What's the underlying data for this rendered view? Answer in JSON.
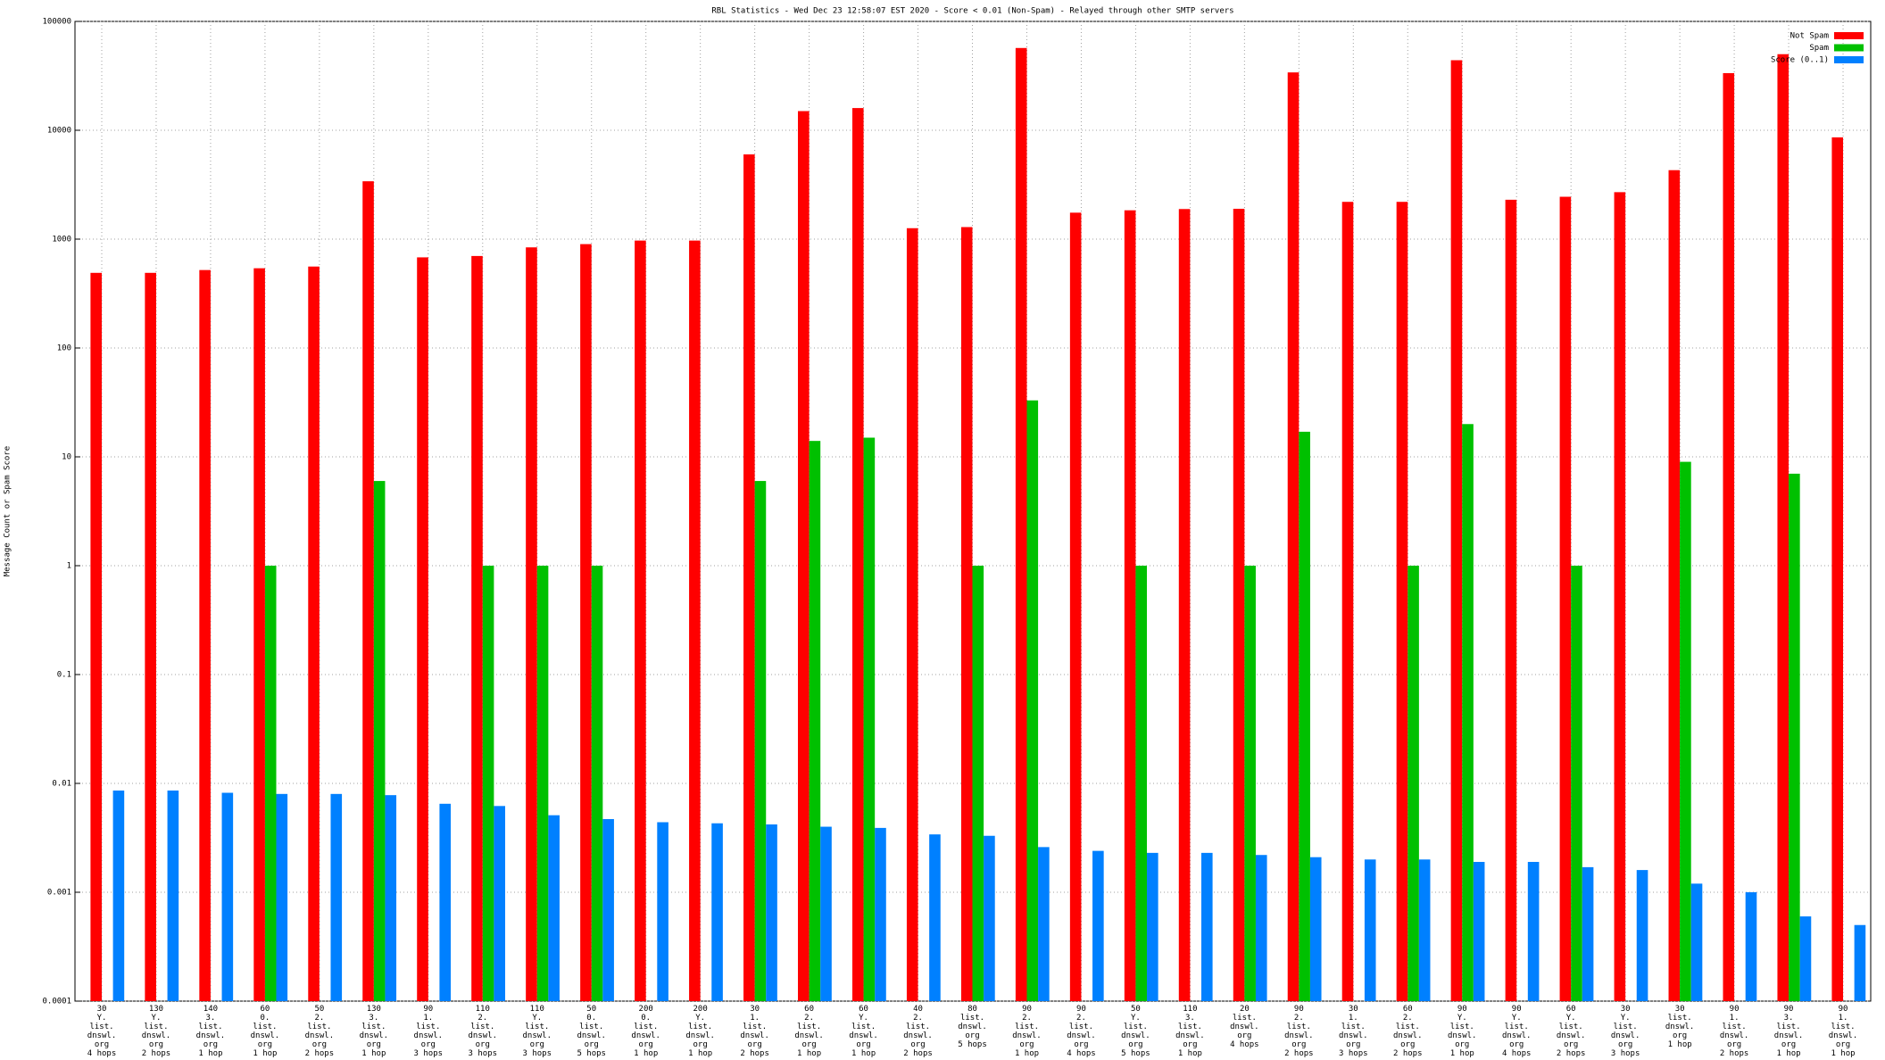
{
  "chart_data": {
    "type": "bar",
    "title": "RBL Statistics - Wed Dec 23 12:58:07 EST 2020 - Score < 0.01 (Non-Spam) - Relayed through other SMTP servers",
    "y_label": "Message Count or Spam Score",
    "log_scale": true,
    "grid": true,
    "legend": "top-right",
    "ylim": [
      0.0001,
      100000
    ],
    "yticks": [
      0.0001,
      0.001,
      0.01,
      0.1,
      1,
      10,
      100,
      1000,
      10000,
      100000
    ],
    "categories": [
      "30\nY.\nlist.\ndnswl.\norg\n4 hops",
      "130\nY.\nlist.\ndnswl.\norg\n2 hops",
      "140\n3.\nlist.\ndnswl.\norg\n1 hop",
      "60\n0.\nlist.\ndnswl.\norg\n1 hop",
      "50\n2.\nlist.\ndnswl.\norg\n2 hops",
      "130\n3.\nlist.\ndnswl.\norg\n1 hop",
      "90\n1.\nlist.\ndnswl.\norg\n3 hops",
      "110\n2.\nlist.\ndnswl.\norg\n3 hops",
      "110\nY.\nlist.\ndnswl.\norg\n3 hops",
      "50\n0.\nlist.\ndnswl.\norg\n5 hops",
      "200\n0.\nlist.\ndnswl.\norg\n1 hop",
      "200\nY.\nlist.\ndnswl.\norg\n1 hop",
      "30\n1.\nlist.\ndnswl.\norg\n2 hops",
      "60\n2.\nlist.\ndnswl.\norg\n1 hop",
      "60\nY.\nlist.\ndnswl.\norg\n1 hop",
      "40\n2.\nlist.\ndnswl.\norg\n2 hops",
      "80\nlist.\ndnswl.\norg\n5 hops",
      "90\n2.\nlist.\ndnswl.\norg\n1 hop",
      "90\n2.\nlist.\ndnswl.\norg\n4 hops",
      "50\nY.\nlist.\ndnswl.\norg\n5 hops",
      "110\n3.\nlist.\ndnswl.\norg\n1 hop",
      "20\nlist.\ndnswl.\norg\n4 hops",
      "90\n2.\nlist.\ndnswl.\norg\n2 hops",
      "30\n1.\nlist.\ndnswl.\norg\n3 hops",
      "60\n2.\nlist.\ndnswl.\norg\n2 hops",
      "90\nY.\nlist.\ndnswl.\norg\n1 hop",
      "90\nY.\nlist.\ndnswl.\norg\n4 hops",
      "60\nY.\nlist.\ndnswl.\norg\n2 hops",
      "30\nY.\nlist.\ndnswl.\norg\n3 hops",
      "30\nlist.\ndnswl.\norg\n1 hop",
      "90\n1.\nlist.\ndnswl.\norg\n2 hops",
      "90\n3.\nlist.\ndnswl.\norg\n1 hop",
      "90\n1.\nlist.\ndnswl.\norg\n1 hop"
    ],
    "series": [
      {
        "name": "Not Spam",
        "color": "#ff0000",
        "values": [
          490,
          490,
          520,
          540,
          560,
          3400,
          680,
          700,
          840,
          900,
          970,
          970,
          6000,
          15000,
          16000,
          1260,
          1290,
          57000,
          1750,
          1840,
          1890,
          1900,
          34000,
          2200,
          2200,
          44000,
          2300,
          2450,
          2700,
          4300,
          33500,
          50000,
          8600
        ]
      },
      {
        "name": "Spam",
        "color": "#00c000",
        "values": [
          null,
          null,
          null,
          1,
          null,
          6,
          null,
          1,
          1,
          1,
          null,
          null,
          6,
          14,
          15,
          null,
          1,
          33,
          null,
          1,
          null,
          1,
          17,
          null,
          1,
          20,
          null,
          1,
          null,
          9,
          null,
          7,
          null
        ]
      },
      {
        "name": "Score (0..1)",
        "color": "#0080ff",
        "values": [
          0.0086,
          0.0086,
          0.0082,
          0.008,
          0.008,
          0.0078,
          0.0065,
          0.0062,
          0.0051,
          0.0047,
          0.0044,
          0.0043,
          0.0042,
          0.004,
          0.0039,
          0.0034,
          0.0033,
          0.0026,
          0.0024,
          0.0023,
          0.0023,
          0.0022,
          0.0021,
          0.002,
          0.002,
          0.0019,
          0.0019,
          0.0017,
          0.0016,
          0.0012,
          0.001,
          0.0006,
          0.0005
        ]
      }
    ]
  }
}
